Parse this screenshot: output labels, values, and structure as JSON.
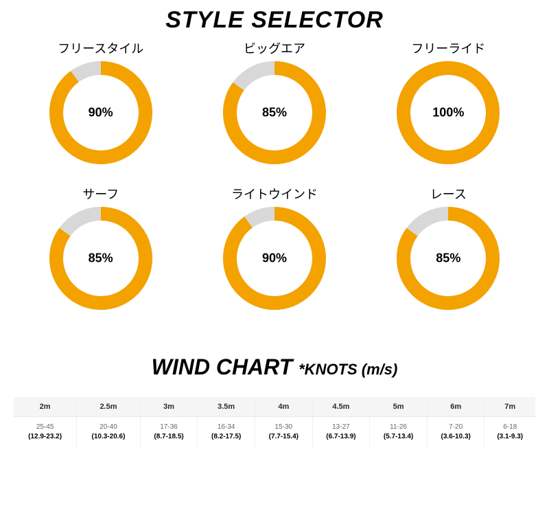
{
  "style_selector": {
    "title": "STYLE SELECTOR",
    "title_fontsize": 34,
    "ring": {
      "stroke_width": 20,
      "radius": 65,
      "fill_color": "#f4a200",
      "track_color": "#d8d8d8",
      "start_angle_deg": -90
    },
    "gauges": [
      {
        "label": "フリースタイル",
        "percent": 90
      },
      {
        "label": "ビッグエア",
        "percent": 85
      },
      {
        "label": "フリーライド",
        "percent": 100
      },
      {
        "label": "サーフ",
        "percent": 85
      },
      {
        "label": "ライトウインド",
        "percent": 90
      },
      {
        "label": "レース",
        "percent": 85
      }
    ]
  },
  "wind_chart": {
    "title": "WIND CHART",
    "subtitle": "*KNOTS (m/s)",
    "columns": [
      "2m",
      "2.5m",
      "3m",
      "3.5m",
      "4m",
      "4.5m",
      "5m",
      "6m",
      "7m"
    ],
    "rows": [
      {
        "knots": "25-45",
        "ms": "(12.9-23.2)"
      },
      {
        "knots": "20-40",
        "ms": "(10.3-20.6)"
      },
      {
        "knots": "17-36",
        "ms": "(8.7-18.5)"
      },
      {
        "knots": "16-34",
        "ms": "(8.2-17.5)"
      },
      {
        "knots": "15-30",
        "ms": "(7.7-15.4)"
      },
      {
        "knots": "13-27",
        "ms": "(6.7-13.9)"
      },
      {
        "knots": "11-26",
        "ms": "(5.7-13.4)"
      },
      {
        "knots": "7-20",
        "ms": "(3.6-10.3)"
      },
      {
        "knots": "6-18",
        "ms": "(3.1-9.3)"
      }
    ],
    "header_bg": "#f5f5f5",
    "border_color": "#f0f0f0"
  }
}
